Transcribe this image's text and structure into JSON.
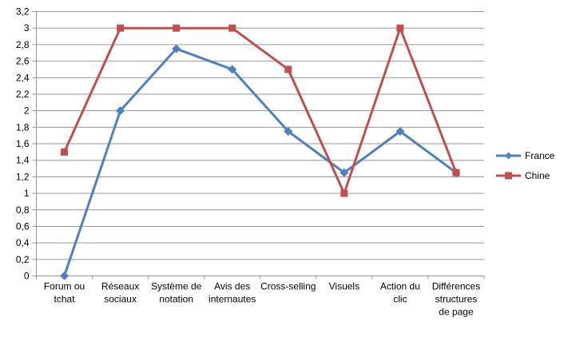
{
  "chart_data": {
    "type": "line",
    "title": "",
    "xlabel": "",
    "ylabel": "",
    "categories": [
      "Forum ou tchat",
      "Réseaux sociaux",
      "Système de notation",
      "Avis des internautes",
      "Cross-selling",
      "Visuels",
      "Action du clic",
      "Différences structures de page"
    ],
    "categories_display": [
      [
        "Forum ou",
        "tchat"
      ],
      [
        "Réseaux",
        "sociaux"
      ],
      [
        "Système de",
        "notation"
      ],
      [
        "Avis des",
        "internautes"
      ],
      [
        "Cross-selling"
      ],
      [
        "Visuels"
      ],
      [
        "Action du",
        "clic"
      ],
      [
        "Différences",
        "structures",
        "de page"
      ]
    ],
    "series": [
      {
        "name": "France",
        "color": "#4F81BD",
        "marker": "diamond",
        "values": [
          0,
          2,
          2.75,
          2.5,
          1.75,
          1.25,
          1.75,
          1.25
        ]
      },
      {
        "name": "Chine",
        "color": "#C0504D",
        "marker": "square",
        "values": [
          1.5,
          3,
          3,
          3,
          2.5,
          1,
          3,
          1.25
        ]
      }
    ],
    "ylim": [
      0,
      3.2
    ],
    "y_tick_step": 0.2,
    "y_tick_labels": [
      "0",
      "0,2",
      "0,4",
      "0,6",
      "0,8",
      "1",
      "1,2",
      "1,4",
      "1,6",
      "1,8",
      "2",
      "2,2",
      "2,4",
      "2,6",
      "2,8",
      "3",
      "3,2"
    ],
    "grid": "horizontal",
    "legend_position": "right",
    "colors": {
      "gridline": "#969696",
      "axis": "#969696",
      "text": "#000000",
      "background": "#FFFFFF"
    }
  }
}
